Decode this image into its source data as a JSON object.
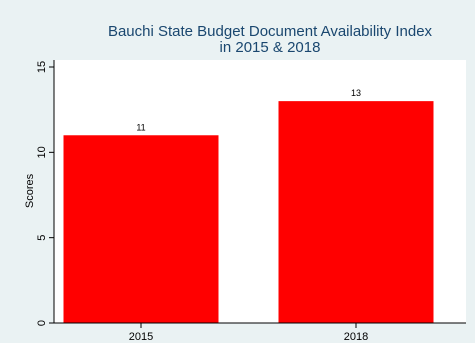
{
  "chart_data": {
    "type": "bar",
    "title_lines": [
      "Bauchi State Budget Document Availability Index",
      "in 2015 & 2018"
    ],
    "xlabel": "",
    "ylabel": "Scores",
    "categories": [
      "2015",
      "2018"
    ],
    "values": [
      11,
      13
    ],
    "data_labels": [
      "11",
      "13"
    ],
    "ylim": [
      0,
      15
    ],
    "yticks": [
      0,
      5,
      10,
      15
    ],
    "ytick_labels": [
      "0",
      "5",
      "10",
      "15"
    ],
    "grid": false,
    "legend": "none",
    "bar_color": "#ff0000",
    "plot_background": "#ffffff",
    "outer_background": "#eaf2f3",
    "title_color": "#1a476f"
  }
}
